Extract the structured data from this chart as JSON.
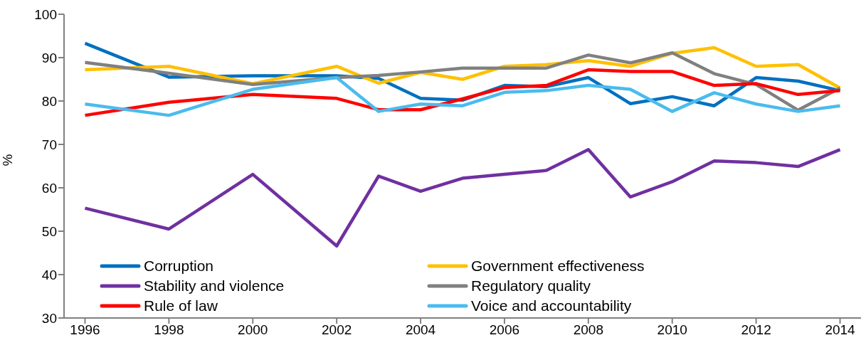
{
  "chart_data": {
    "type": "line",
    "ylabel": "%",
    "x": [
      1996,
      1998,
      2000,
      2002,
      2003,
      2004,
      2005,
      2006,
      2007,
      2008,
      2009,
      2010,
      2011,
      2012,
      2013,
      2014
    ],
    "xlim": [
      1995.5,
      2014.5
    ],
    "xticks": [
      1996,
      1998,
      2000,
      2002,
      2004,
      2006,
      2008,
      2010,
      2012,
      2014
    ],
    "ylim": [
      30,
      100
    ],
    "yticks": [
      30,
      40,
      50,
      60,
      70,
      80,
      90,
      100
    ],
    "grid": false,
    "legend": "bottom left",
    "marker": "none",
    "line_style": "solid",
    "series": [
      {
        "name": "Corruption",
        "color": "#0070c0",
        "values": [
          93.3,
          85.5,
          85.8,
          85.8,
          85.2,
          80.6,
          80.2,
          83.6,
          83.3,
          85.4,
          79.4,
          81.0,
          78.9,
          85.4,
          84.6,
          82.4
        ]
      },
      {
        "name": "Government effectiveness",
        "color": "#ffc000",
        "values": [
          87.2,
          88.0,
          84.0,
          88.0,
          84.1,
          86.6,
          85.0,
          88.0,
          88.4,
          89.3,
          88.0,
          91.0,
          92.3,
          88.0,
          88.4,
          83.0
        ]
      },
      {
        "name": "Stability and violence",
        "color": "#7030a0",
        "values": [
          55.3,
          50.5,
          63.1,
          46.6,
          62.7,
          59.2,
          62.2,
          63.1,
          64.0,
          68.8,
          57.9,
          61.4,
          66.2,
          65.8,
          64.9,
          68.8
        ]
      },
      {
        "name": "Regulatory quality",
        "color": "#808080",
        "values": [
          88.9,
          86.4,
          83.8,
          85.4,
          85.9,
          86.7,
          87.6,
          87.6,
          87.6,
          90.6,
          88.8,
          91.1,
          86.3,
          83.8,
          77.9,
          83.0
        ]
      },
      {
        "name": "Rule of law",
        "color": "#ff0000",
        "values": [
          76.7,
          79.7,
          81.5,
          80.6,
          78.0,
          78.0,
          80.5,
          83.1,
          83.6,
          87.2,
          86.8,
          86.8,
          83.6,
          84.0,
          81.5,
          82.4
        ]
      },
      {
        "name": "Voice and accountability",
        "color": "#4bbbed",
        "values": [
          79.3,
          76.7,
          82.7,
          85.4,
          77.6,
          79.3,
          78.9,
          82.0,
          82.4,
          83.6,
          82.7,
          77.6,
          81.9,
          79.3,
          77.6,
          78.9
        ]
      }
    ]
  }
}
